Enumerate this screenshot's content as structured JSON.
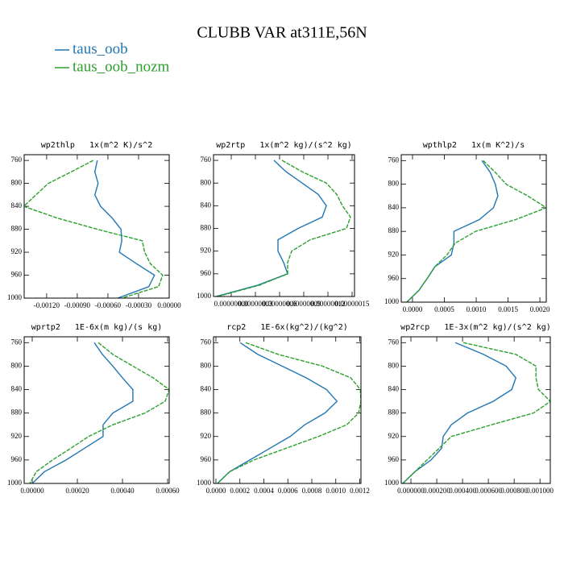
{
  "title": "CLUBB VAR at311E,56N",
  "legend": [
    {
      "name": "taus_oob",
      "color": "#1f77b4"
    },
    {
      "name": "taus_oob_nozm",
      "color": "#2ca02c"
    }
  ],
  "chart_data": [
    {
      "type": "line",
      "title": "wp2thlp   1x(m^2 K)/s^2",
      "y": [
        760,
        780,
        800,
        820,
        840,
        860,
        880,
        900,
        920,
        940,
        960,
        980,
        1000
      ],
      "series": [
        {
          "values": [
            -0.000704,
            -0.000728,
            -0.000696,
            -0.000728,
            -0.000672,
            -0.00056,
            -0.000472,
            -0.000464,
            -0.000488,
            -0.00032,
            -0.000144,
            -0.0002,
            -0.000504
          ]
        },
        {
          "values": [
            -0.000744,
            -0.00096,
            -0.001184,
            -0.001304,
            -0.001424,
            -0.001104,
            -0.000704,
            -0.000264,
            -0.00024,
            -0.000184,
            -6.4e-05,
            -0.000104,
            -0.000464
          ]
        }
      ],
      "xlim": [
        -0.00142,
        0
      ],
      "xticks": [
        {
          "value": -0.0012,
          "label": "-0.00120"
        },
        {
          "value": -0.0009,
          "label": "-0.00090"
        },
        {
          "value": -0.0006,
          "label": "-0.00060"
        },
        {
          "value": -0.0003,
          "label": "-0.00030"
        },
        {
          "value": 0,
          "label": "0.00000"
        }
      ],
      "ylim": [
        750,
        1000
      ],
      "yticks": [
        760,
        800,
        840,
        880,
        920,
        960,
        1000
      ]
    },
    {
      "type": "line",
      "title": "wp2rtp   1x(m^2 kg)/(s^2 kg)",
      "y": [
        760,
        780,
        800,
        820,
        840,
        860,
        880,
        900,
        920,
        940,
        960,
        980,
        1000
      ],
      "series": [
        {
          "values": [
            5.3e-08,
            6.8e-08,
            8.8e-08,
            1.08e-07,
            1.18e-07,
            1.13e-07,
            8.3e-08,
            5.8e-08,
            5.8e-08,
            6.5e-08,
            7e-08,
            3.3e-08,
            -1.9e-08
          ]
        },
        {
          "values": [
            6.3e-08,
            8.8e-08,
            1.18e-07,
            1.31e-07,
            1.38e-07,
            1.48e-07,
            1.43e-07,
            9.8e-08,
            7.5e-08,
            7e-08,
            7e-08,
            3.5e-08,
            -1.7e-08
          ]
        }
      ],
      "xlim": [
        -2.2e-08,
        1.53e-07
      ],
      "xticks": [
        {
          "value": 0,
          "label": "0.00000000"
        },
        {
          "value": 3e-08,
          "label": "0.00000003"
        },
        {
          "value": 6e-08,
          "label": "0.00000006"
        },
        {
          "value": 9e-08,
          "label": "0.00000009"
        },
        {
          "value": 1.2e-07,
          "label": "0.00000012"
        },
        {
          "value": 1.5e-07,
          "label": "0.00000015"
        }
      ],
      "ylim": [
        750,
        1000
      ],
      "yticks": [
        760,
        800,
        840,
        880,
        920,
        960,
        1000
      ]
    },
    {
      "type": "line",
      "title": "wpthlp2   1x(m K^2)/s",
      "y": [
        760,
        780,
        800,
        820,
        840,
        860,
        880,
        900,
        920,
        940,
        960,
        980,
        1000
      ],
      "series": [
        {
          "values": [
            0.00109,
            0.00122,
            0.0013,
            0.00134,
            0.00127,
            0.00105,
            0.00065,
            0.00065,
            0.00061,
            0.00035,
            0.00023,
            0.0001,
            -9e-05
          ]
        },
        {
          "values": [
            0.00111,
            0.0013,
            0.00147,
            0.00181,
            0.0021,
            0.00162,
            0.00099,
            0.00067,
            0.00054,
            0.00035,
            0.00023,
            0.0001,
            -9e-05
          ]
        }
      ],
      "xlim": [
        -0.000177,
        0.0021
      ],
      "xticks": [
        {
          "value": 0,
          "label": "0.0000"
        },
        0.0005,
        {
          "value": 0.001,
          "label": "0.0010"
        },
        0.0015,
        {
          "value": 0.002,
          "label": "0.0020"
        }
      ],
      "ylim": [
        750,
        1000
      ],
      "yticks": [
        760,
        800,
        840,
        880,
        920,
        960,
        1000
      ]
    },
    {
      "type": "line",
      "title": "wprtp2   1E-6x(m kg)/(s kg)",
      "y": [
        760,
        780,
        800,
        820,
        840,
        860,
        880,
        900,
        920,
        940,
        960,
        980,
        1000
      ],
      "series": [
        {
          "values": [
            0.000275,
            0.000311,
            0.000357,
            0.0004,
            0.000446,
            0.000446,
            0.000357,
            0.000314,
            0.000314,
            0.000232,
            0.00015,
            5.4e-05,
            0
          ]
        },
        {
          "values": [
            0.000293,
            0.000357,
            0.000446,
            0.000536,
            0.000607,
            0.000589,
            0.0005,
            0.000357,
            0.00025,
            0.000171,
            9e-05,
            1.8e-05,
            -1.1e-05
          ]
        }
      ],
      "xlim": [
        -3.57e-05,
        0.000607
      ],
      "xticks": [
        {
          "value": 0,
          "label": "0.00000"
        },
        {
          "value": 0.0002,
          "label": "0.00020"
        },
        {
          "value": 0.0004,
          "label": "0.00040"
        },
        {
          "value": 0.0006,
          "label": "0.00060"
        }
      ],
      "ylim": [
        750,
        1000
      ],
      "yticks": [
        760,
        800,
        840,
        880,
        920,
        960,
        1000
      ]
    },
    {
      "type": "line",
      "title": "rcp2   1E-6x(kg^2)/(kg^2)",
      "y": [
        760,
        780,
        800,
        820,
        840,
        860,
        880,
        900,
        920,
        940,
        960,
        980,
        1000
      ],
      "series": [
        {
          "values": [
            0.000202,
            0.00035,
            0.000552,
            0.000754,
            0.000923,
            0.00101,
            0.000909,
            0.000741,
            0.000619,
            0.000451,
            0.000283,
            0.000114,
            1.3e-05
          ]
        },
        {
          "values": [
            0.000249,
            0.000519,
            0.000889,
            0.001125,
            0.001205,
            0.00121,
            0.00119,
            0.001091,
            0.000855,
            0.000586,
            0.000317,
            0.000114,
            1.3e-05
          ]
        }
      ],
      "xlim": [
        -2e-05,
        0.00121
      ],
      "xticks": [
        {
          "value": 0,
          "label": "0.0000"
        },
        0.0002,
        0.0004,
        0.0006,
        0.0008,
        {
          "value": 0.001,
          "label": "0.0010"
        },
        0.0012
      ],
      "ylim": [
        750,
        1000
      ],
      "yticks": [
        760,
        800,
        840,
        880,
        920,
        960,
        1000
      ]
    },
    {
      "type": "line",
      "title": "wp2rcp   1E-3x(m^2 kg)/(s^2 kg)",
      "y": [
        760,
        780,
        800,
        820,
        840,
        860,
        880,
        900,
        920,
        940,
        960,
        980,
        1000
      ],
      "series": [
        {
          "values": [
            0.000344,
            0.000563,
            0.000738,
            0.000813,
            0.000781,
            0.000638,
            0.000438,
            0.000313,
            0.00025,
            0.000238,
            0.000156,
            3.1e-05,
            -6.3e-05
          ]
        },
        {
          "values": [
            0.000406,
            0.000813,
            0.000969,
            0.000969,
            0.000988,
            0.001081,
            0.00095,
            0.000625,
            0.000313,
            0.000219,
            0.000125,
            3.1e-05,
            -6.3e-05
          ]
        }
      ],
      "xlim": [
        -7.5e-05,
        0.00108
      ],
      "xticks": [
        {
          "value": 0,
          "label": "0.000000"
        },
        {
          "value": 0.0002,
          "label": "0.000200"
        },
        {
          "value": 0.0004,
          "label": "0.000400"
        },
        {
          "value": 0.0006,
          "label": "0.000600"
        },
        {
          "value": 0.0008,
          "label": "0.000800"
        },
        {
          "value": 0.001,
          "label": "0.001000"
        }
      ],
      "ylim": [
        750,
        1000
      ],
      "yticks": [
        760,
        800,
        840,
        880,
        920,
        960,
        1000
      ]
    }
  ]
}
